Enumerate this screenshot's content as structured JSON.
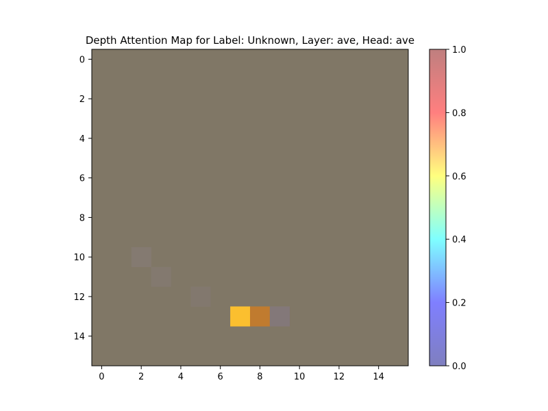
{
  "chart_data": {
    "type": "heatmap",
    "title": "Depth Attention Map for Label: Unknown, Layer: ave, Head: ave",
    "rows": 16,
    "cols": 16,
    "x_ticks": [
      0,
      2,
      4,
      6,
      8,
      10,
      12,
      14
    ],
    "y_ticks": [
      0,
      2,
      4,
      6,
      8,
      10,
      12,
      14
    ],
    "base_color": "#807766",
    "cells": [
      {
        "row": 10,
        "col": 2,
        "color": "#847a71",
        "value": 0.03
      },
      {
        "row": 11,
        "col": 3,
        "color": "#83796f",
        "value": 0.03
      },
      {
        "row": 12,
        "col": 5,
        "color": "#82786e",
        "value": 0.02
      },
      {
        "row": 13,
        "col": 7,
        "color": "#fbbf2f",
        "value": 0.72
      },
      {
        "row": 13,
        "col": 8,
        "color": "#c07b2f",
        "value": 0.88
      },
      {
        "row": 13,
        "col": 9,
        "color": "#837879",
        "value": 0.04
      }
    ],
    "colorbar": {
      "min": 0.0,
      "max": 1.0,
      "ticks": [
        "0.0",
        "0.2",
        "0.4",
        "0.6",
        "0.8",
        "1.0"
      ],
      "stops": [
        "#7f7fbf",
        "#7f7fff",
        "#7fffff",
        "#ffff7f",
        "#ff7f7f",
        "#bf7f7f"
      ]
    }
  }
}
